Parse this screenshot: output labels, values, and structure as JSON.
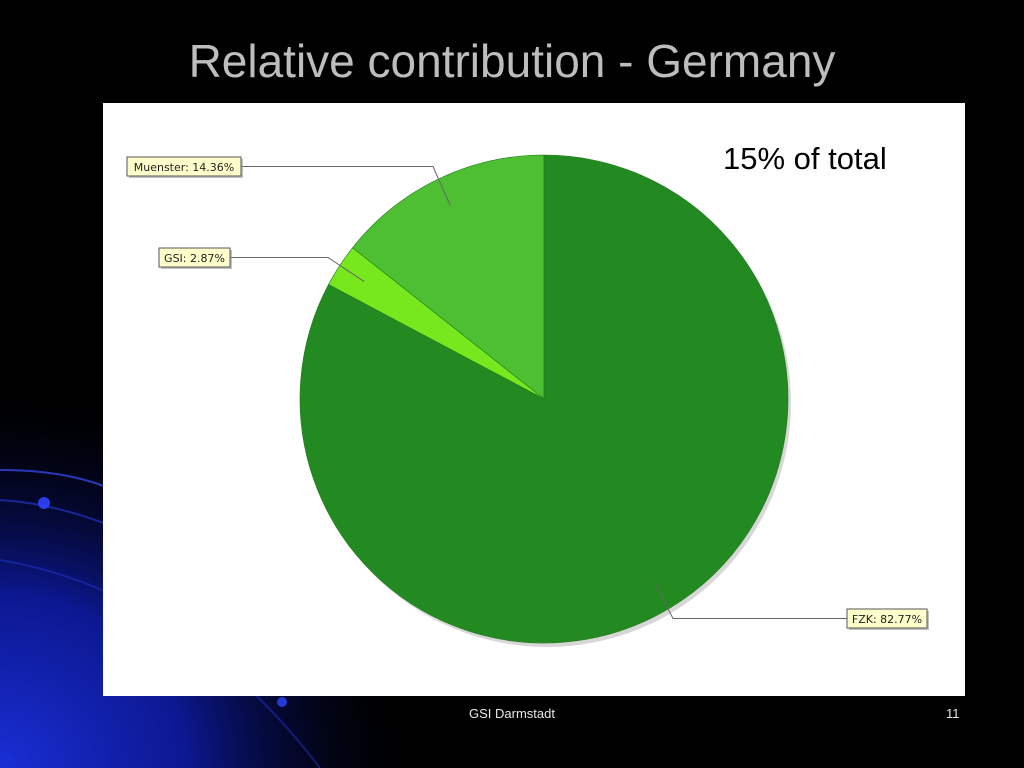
{
  "slide": {
    "title": "Relative contribution - Germany",
    "note": "15% of total",
    "footer": "GSI Darmstadt",
    "page_number": "11"
  },
  "chart_data": {
    "type": "pie",
    "slices": [
      {
        "label": "Muenster",
        "value": 14.36,
        "label_text": "Muenster: 14.36%",
        "color": "#4ebf33"
      },
      {
        "label": "GSI",
        "value": 2.87,
        "label_text": "GSI: 2.87%",
        "color": "#78e81e"
      },
      {
        "label": "FZK",
        "value": 82.77,
        "label_text": "FZK: 82.77%",
        "color": "#228a20"
      }
    ],
    "start": "top",
    "direction": "counterclockwise",
    "label_style": "callout boxes with leader lines",
    "label_background": "#ffffcc"
  }
}
